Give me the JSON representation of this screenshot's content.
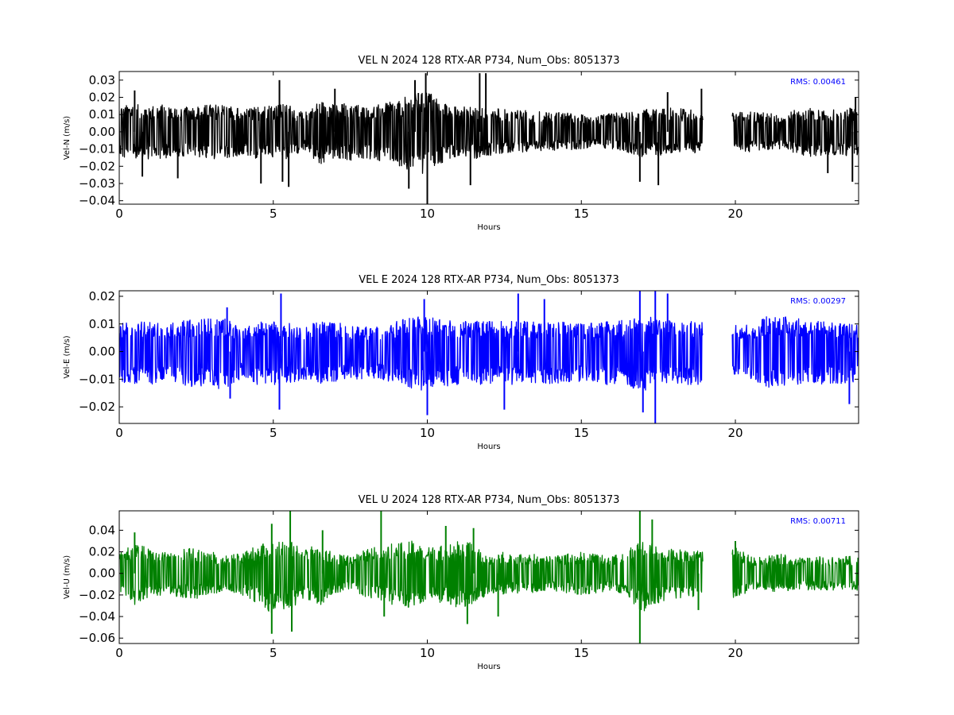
{
  "chart_data": [
    {
      "type": "line",
      "title": "VEL N 2024 128 RTX-AR  P734, Num_Obs: 8051373",
      "xlabel": "Hours",
      "ylabel": "Vel-N (m/s)",
      "xlim": [
        0,
        24
      ],
      "ylim": [
        -0.042,
        0.035
      ],
      "xticks": [
        0,
        5,
        10,
        15,
        20
      ],
      "yticks": [
        -0.04,
        -0.03,
        -0.02,
        -0.01,
        0.0,
        0.01,
        0.02,
        0.03
      ],
      "ytick_labels": [
        "−0.04",
        "−0.03",
        "−0.02",
        "−0.01",
        "0.00",
        "0.01",
        "0.02",
        "0.03"
      ],
      "color": "#000000",
      "annotation": "RMS:  0.00461",
      "annotation_color": "#0000ff",
      "series": [
        {
          "x": [
            0,
            0.5,
            1,
            1.5,
            2,
            2.5,
            3,
            3.5,
            4,
            4.5,
            5,
            5.5,
            6,
            6.5,
            7,
            7.5,
            8,
            8.5,
            9,
            9.5,
            10,
            10.5,
            11,
            11.5,
            12,
            12.5,
            13,
            13.5,
            14,
            14.5,
            15,
            15.5,
            16,
            16.5,
            17,
            17.5,
            18,
            18.5,
            18.95,
            19.9,
            20.5,
            21,
            21.5,
            22,
            22.5,
            23,
            23.5,
            24
          ],
          "upper": [
            0.015,
            0.016,
            0.015,
            0.016,
            0.014,
            0.015,
            0.016,
            0.016,
            0.013,
            0.015,
            0.016,
            0.016,
            0.011,
            0.018,
            0.016,
            0.017,
            0.015,
            0.016,
            0.018,
            0.022,
            0.024,
            0.018,
            0.014,
            0.016,
            0.014,
            0.013,
            0.013,
            0.012,
            0.012,
            0.011,
            0.01,
            0.009,
            0.011,
            0.012,
            0.013,
            0.013,
            0.014,
            0.013,
            0.012,
            0.011,
            0.012,
            0.011,
            0.01,
            0.013,
            0.014,
            0.012,
            0.014,
            0.014
          ],
          "lower": [
            -0.015,
            -0.016,
            -0.016,
            -0.016,
            -0.014,
            -0.015,
            -0.016,
            -0.016,
            -0.013,
            -0.016,
            -0.017,
            -0.016,
            -0.01,
            -0.02,
            -0.015,
            -0.017,
            -0.016,
            -0.017,
            -0.019,
            -0.023,
            -0.025,
            -0.018,
            -0.014,
            -0.016,
            -0.014,
            -0.013,
            -0.012,
            -0.011,
            -0.011,
            -0.011,
            -0.01,
            -0.009,
            -0.01,
            -0.012,
            -0.015,
            -0.014,
            -0.013,
            -0.013,
            -0.012,
            -0.011,
            -0.012,
            -0.011,
            -0.01,
            -0.013,
            -0.015,
            -0.013,
            -0.014,
            -0.014
          ],
          "gap": [
            18.95,
            19.9
          ],
          "spikes": [
            {
              "x": 0.5,
              "y": 0.024
            },
            {
              "x": 0.75,
              "y": -0.026
            },
            {
              "x": 1.9,
              "y": -0.027
            },
            {
              "x": 4.6,
              "y": -0.03
            },
            {
              "x": 5.2,
              "y": 0.03
            },
            {
              "x": 5.3,
              "y": -0.029
            },
            {
              "x": 5.5,
              "y": -0.032
            },
            {
              "x": 7.0,
              "y": 0.025
            },
            {
              "x": 9.4,
              "y": -0.033
            },
            {
              "x": 9.6,
              "y": 0.03
            },
            {
              "x": 10.0,
              "y": -0.042
            },
            {
              "x": 9.95,
              "y": 0.034
            },
            {
              "x": 11.7,
              "y": 0.034
            },
            {
              "x": 11.9,
              "y": 0.034
            },
            {
              "x": 11.4,
              "y": -0.031
            },
            {
              "x": 16.9,
              "y": -0.029
            },
            {
              "x": 17.5,
              "y": -0.031
            },
            {
              "x": 17.8,
              "y": 0.023
            },
            {
              "x": 18.9,
              "y": 0.025
            },
            {
              "x": 23.0,
              "y": -0.024
            },
            {
              "x": 23.8,
              "y": -0.029
            },
            {
              "x": 23.9,
              "y": 0.02
            }
          ]
        }
      ]
    },
    {
      "type": "line",
      "title": "VEL E 2024 128 RTX-AR  P734, Num_Obs: 8051373",
      "xlabel": "Hours",
      "ylabel": "Vel-E (m/s)",
      "xlim": [
        0,
        24
      ],
      "ylim": [
        -0.026,
        0.022
      ],
      "xticks": [
        0,
        5,
        10,
        15,
        20
      ],
      "yticks": [
        -0.02,
        -0.01,
        0.0,
        0.01,
        0.02
      ],
      "ytick_labels": [
        "−0.02",
        "−0.01",
        "0.00",
        "0.01",
        "0.02"
      ],
      "color": "#0000ff",
      "annotation": "RMS:  0.00297",
      "annotation_color": "#0000ff",
      "series": [
        {
          "x": [
            0,
            0.5,
            1,
            1.5,
            2,
            2.5,
            3,
            3.5,
            4,
            4.5,
            5,
            5.5,
            6,
            6.5,
            7,
            7.5,
            8,
            8.5,
            9,
            9.5,
            10,
            10.5,
            11,
            11.5,
            12,
            12.5,
            13,
            13.5,
            14,
            14.5,
            15,
            15.5,
            16,
            16.5,
            17,
            17.5,
            18,
            18.5,
            18.95,
            19.9,
            20.5,
            21,
            21.5,
            22,
            22.5,
            23,
            23.5,
            24
          ],
          "upper": [
            0.01,
            0.011,
            0.011,
            0.01,
            0.011,
            0.012,
            0.012,
            0.012,
            0.008,
            0.011,
            0.011,
            0.011,
            0.009,
            0.011,
            0.011,
            0.01,
            0.009,
            0.009,
            0.011,
            0.013,
            0.013,
            0.012,
            0.011,
            0.011,
            0.011,
            0.011,
            0.011,
            0.011,
            0.011,
            0.011,
            0.01,
            0.011,
            0.011,
            0.012,
            0.013,
            0.012,
            0.011,
            0.011,
            0.011,
            0.01,
            0.01,
            0.013,
            0.013,
            0.012,
            0.011,
            0.011,
            0.01,
            0.01
          ],
          "lower": [
            -0.011,
            -0.012,
            -0.012,
            -0.011,
            -0.012,
            -0.013,
            -0.013,
            -0.014,
            -0.009,
            -0.012,
            -0.013,
            -0.012,
            -0.01,
            -0.012,
            -0.011,
            -0.01,
            -0.01,
            -0.01,
            -0.012,
            -0.014,
            -0.014,
            -0.013,
            -0.012,
            -0.012,
            -0.012,
            -0.012,
            -0.012,
            -0.012,
            -0.012,
            -0.011,
            -0.011,
            -0.012,
            -0.012,
            -0.013,
            -0.015,
            -0.013,
            -0.012,
            -0.012,
            -0.012,
            -0.01,
            -0.01,
            -0.013,
            -0.014,
            -0.013,
            -0.012,
            -0.012,
            -0.012,
            -0.011
          ],
          "gap": [
            18.95,
            19.9
          ],
          "spikes": [
            {
              "x": 3.5,
              "y": 0.016
            },
            {
              "x": 3.6,
              "y": -0.017
            },
            {
              "x": 5.25,
              "y": 0.021
            },
            {
              "x": 5.2,
              "y": -0.021
            },
            {
              "x": 9.9,
              "y": 0.019
            },
            {
              "x": 10.0,
              "y": -0.023
            },
            {
              "x": 12.5,
              "y": -0.021
            },
            {
              "x": 12.95,
              "y": 0.021
            },
            {
              "x": 13.8,
              "y": 0.019
            },
            {
              "x": 16.9,
              "y": 0.022
            },
            {
              "x": 17.0,
              "y": -0.022
            },
            {
              "x": 17.4,
              "y": -0.026
            },
            {
              "x": 17.4,
              "y": 0.022
            },
            {
              "x": 17.8,
              "y": 0.021
            },
            {
              "x": 23.7,
              "y": -0.019
            }
          ]
        }
      ]
    },
    {
      "type": "line",
      "title": "VEL U 2024 128 RTX-AR  P734, Num_Obs: 8051373",
      "xlabel": "Hours",
      "ylabel": "Vel-U (m/s)",
      "xlim": [
        0,
        24
      ],
      "ylim": [
        -0.065,
        0.058
      ],
      "xticks": [
        0,
        5,
        10,
        15,
        20
      ],
      "yticks": [
        -0.06,
        -0.04,
        -0.02,
        0.0,
        0.02,
        0.04
      ],
      "ytick_labels": [
        "−0.06",
        "−0.04",
        "−0.02",
        "0.00",
        "0.02",
        "0.04"
      ],
      "color": "#008000",
      "annotation": "RMS:  0.00711",
      "annotation_color": "#0000ff",
      "series": [
        {
          "x": [
            0,
            0.5,
            1,
            1.5,
            2,
            2.5,
            3,
            3.5,
            4,
            4.5,
            5,
            5.5,
            6,
            6.5,
            7,
            7.5,
            8,
            8.5,
            9,
            9.5,
            10,
            10.5,
            11,
            11.5,
            12,
            12.5,
            13,
            13.5,
            14,
            14.5,
            15,
            15.5,
            16,
            16.5,
            17,
            17.5,
            18,
            18.5,
            18.95,
            19.9,
            20.5,
            21,
            21.5,
            22,
            22.5,
            23,
            23.5,
            24
          ],
          "upper": [
            0.018,
            0.03,
            0.022,
            0.02,
            0.022,
            0.024,
            0.02,
            0.016,
            0.02,
            0.026,
            0.034,
            0.032,
            0.022,
            0.028,
            0.018,
            0.016,
            0.022,
            0.026,
            0.028,
            0.03,
            0.024,
            0.026,
            0.03,
            0.028,
            0.018,
            0.02,
            0.018,
            0.018,
            0.016,
            0.018,
            0.02,
            0.018,
            0.016,
            0.022,
            0.03,
            0.026,
            0.022,
            0.022,
            0.02,
            0.026,
            0.016,
            0.016,
            0.018,
            0.014,
            0.016,
            0.016,
            0.016,
            0.016
          ],
          "lower": [
            -0.018,
            -0.03,
            -0.022,
            -0.02,
            -0.022,
            -0.024,
            -0.02,
            -0.016,
            -0.02,
            -0.028,
            -0.038,
            -0.034,
            -0.024,
            -0.03,
            -0.018,
            -0.016,
            -0.022,
            -0.026,
            -0.03,
            -0.032,
            -0.026,
            -0.028,
            -0.032,
            -0.03,
            -0.018,
            -0.02,
            -0.018,
            -0.018,
            -0.016,
            -0.018,
            -0.02,
            -0.018,
            -0.016,
            -0.024,
            -0.036,
            -0.028,
            -0.024,
            -0.024,
            -0.02,
            -0.028,
            -0.016,
            -0.016,
            -0.018,
            -0.014,
            -0.016,
            -0.016,
            -0.016,
            -0.016
          ],
          "gap": [
            18.95,
            19.9
          ],
          "spikes": [
            {
              "x": 0.5,
              "y": 0.038
            },
            {
              "x": 4.95,
              "y": 0.046
            },
            {
              "x": 4.95,
              "y": -0.056
            },
            {
              "x": 5.55,
              "y": 0.058
            },
            {
              "x": 5.6,
              "y": -0.054
            },
            {
              "x": 6.6,
              "y": 0.04
            },
            {
              "x": 8.5,
              "y": 0.058
            },
            {
              "x": 8.6,
              "y": -0.04
            },
            {
              "x": 10.6,
              "y": 0.044
            },
            {
              "x": 11.3,
              "y": -0.047
            },
            {
              "x": 11.5,
              "y": 0.042
            },
            {
              "x": 12.3,
              "y": -0.04
            },
            {
              "x": 16.9,
              "y": 0.058
            },
            {
              "x": 16.9,
              "y": -0.065
            },
            {
              "x": 17.3,
              "y": 0.05
            },
            {
              "x": 18.8,
              "y": -0.034
            },
            {
              "x": 20.0,
              "y": 0.03
            }
          ]
        }
      ]
    }
  ]
}
